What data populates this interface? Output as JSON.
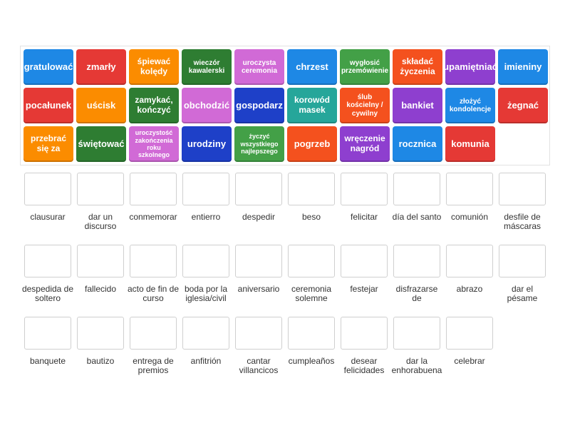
{
  "tiles": [
    {
      "text": "gratulować",
      "color": "#1e88e5"
    },
    {
      "text": "zmarły",
      "color": "#e53935"
    },
    {
      "text": "śpiewać kolędy",
      "color": "#fb8c00"
    },
    {
      "text": "wieczór kawalerski",
      "color": "#2e7d32"
    },
    {
      "text": "uroczysta ceremonia",
      "color": "#d16ad6"
    },
    {
      "text": "chrzest",
      "color": "#1e88e5"
    },
    {
      "text": "wygłosić przemówienie",
      "color": "#43a047"
    },
    {
      "text": "składać życzenia",
      "color": "#f4511e"
    },
    {
      "text": "upamiętniać",
      "color": "#8e3fcf"
    },
    {
      "text": "imieniny",
      "color": "#1e88e5"
    },
    {
      "text": "pocałunek",
      "color": "#e53935"
    },
    {
      "text": "uścisk",
      "color": "#fb8c00"
    },
    {
      "text": "zamykać, kończyć",
      "color": "#2e7d32"
    },
    {
      "text": "obchodzić",
      "color": "#d16ad6"
    },
    {
      "text": "gospodarz",
      "color": "#1e40c8"
    },
    {
      "text": "korowód masek",
      "color": "#26a69a"
    },
    {
      "text": "ślub kościelny / cywilny",
      "color": "#f4511e"
    },
    {
      "text": "bankiet",
      "color": "#8e3fcf"
    },
    {
      "text": "złożyć kondolencje",
      "color": "#1e88e5"
    },
    {
      "text": "żegnać",
      "color": "#e53935"
    },
    {
      "text": "przebrać się za",
      "color": "#fb8c00"
    },
    {
      "text": "świętować",
      "color": "#2e7d32"
    },
    {
      "text": "uroczystość zakończenia roku szkolnego",
      "color": "#d16ad6"
    },
    {
      "text": "urodziny",
      "color": "#1e40c8"
    },
    {
      "text": "życzyć wszystkiego najlepszego",
      "color": "#43a047"
    },
    {
      "text": "pogrzeb",
      "color": "#f4511e"
    },
    {
      "text": "wręczenie nagród",
      "color": "#8e3fcf"
    },
    {
      "text": "rocznica",
      "color": "#1e88e5"
    },
    {
      "text": "komunia",
      "color": "#e53935"
    }
  ],
  "targets": [
    "clausurar",
    "dar un discurso",
    "conmemorar",
    "entierro",
    "despedir",
    "beso",
    "felicitar",
    "día del santo",
    "comunión",
    "desfile de máscaras",
    "despedida de soltero",
    "fallecido",
    "acto de fin de curso",
    "boda por la iglesia/civil",
    "aniversario",
    "ceremonia solemne",
    "festejar",
    "disfrazarse de",
    "abrazo",
    "dar el pésame",
    "banquete",
    "bautizo",
    "entrega de premios",
    "anfitrión",
    "cantar villancicos",
    "cumpleaños",
    "desear felicidades",
    "dar la enhorabuena",
    "celebrar"
  ]
}
